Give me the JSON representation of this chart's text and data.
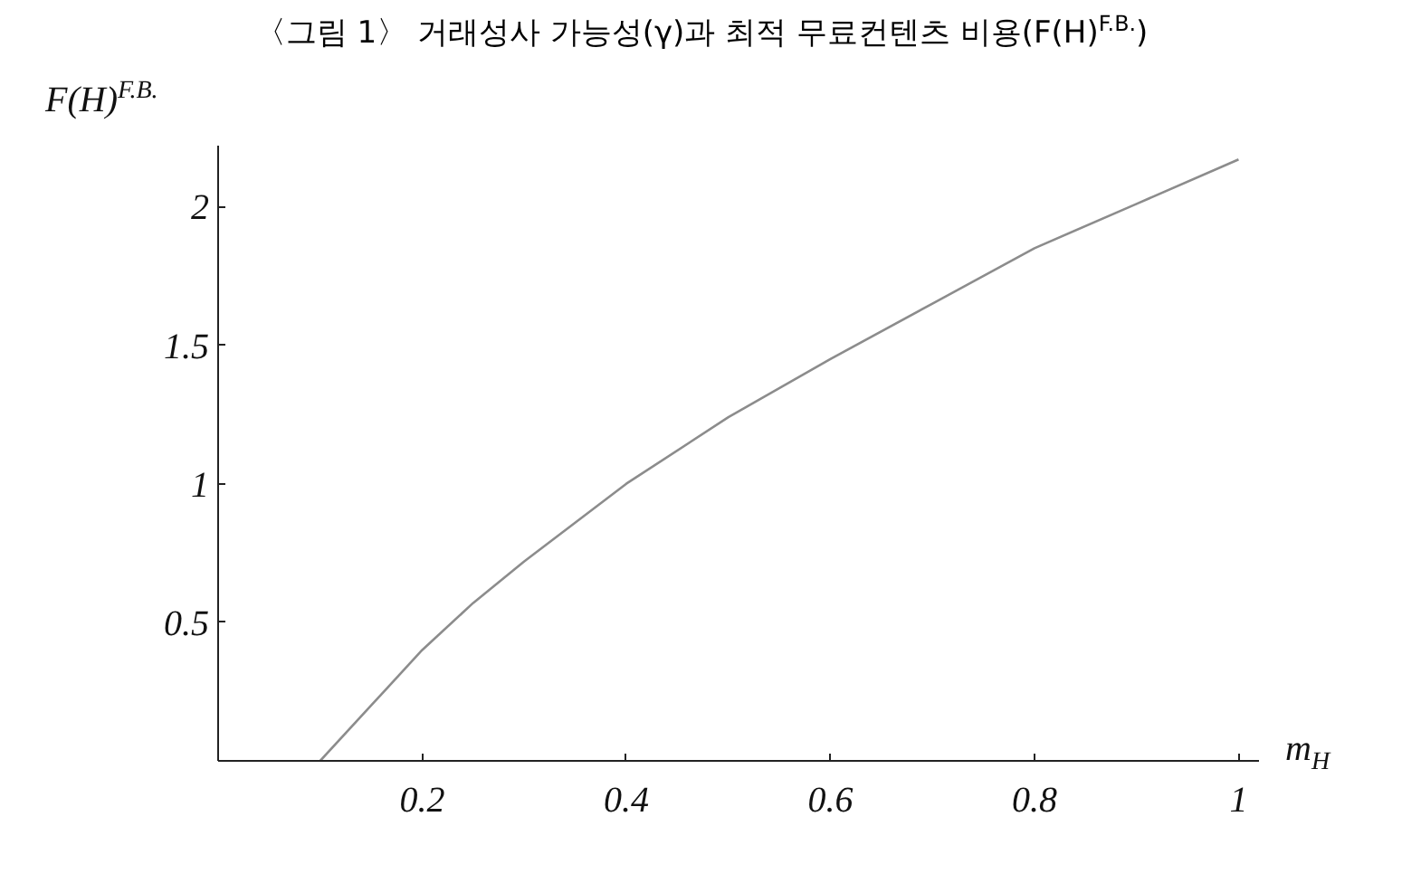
{
  "chart_data": {
    "type": "line",
    "title": "〈그림 1〉 거래성사 가능성(γ)과 최적 무료컨텐츠 비용(F(H)$^{F.B.}$)",
    "xlabel": "m$_{H}$",
    "ylabel": "F(H)$^{F.B.}$",
    "x": [
      0.1,
      0.15,
      0.2,
      0.25,
      0.3,
      0.4,
      0.5,
      0.6,
      0.7,
      0.8,
      0.9,
      1.0
    ],
    "series": [
      {
        "color": "#8c8c8c",
        "values": [
          0,
          0.2,
          0.4,
          0.57,
          0.72,
          1.0,
          1.24,
          1.45,
          1.65,
          1.85,
          2.01,
          2.17
        ]
      }
    ],
    "xlim": [
      0,
      1.02
    ],
    "ylim": [
      0,
      2.22
    ],
    "xticks": [
      0.2,
      0.4,
      0.6,
      0.8,
      1
    ],
    "yticks": [
      0.5,
      1,
      1.5,
      2
    ],
    "grid": false,
    "marker": "none",
    "line_style": "solid"
  }
}
